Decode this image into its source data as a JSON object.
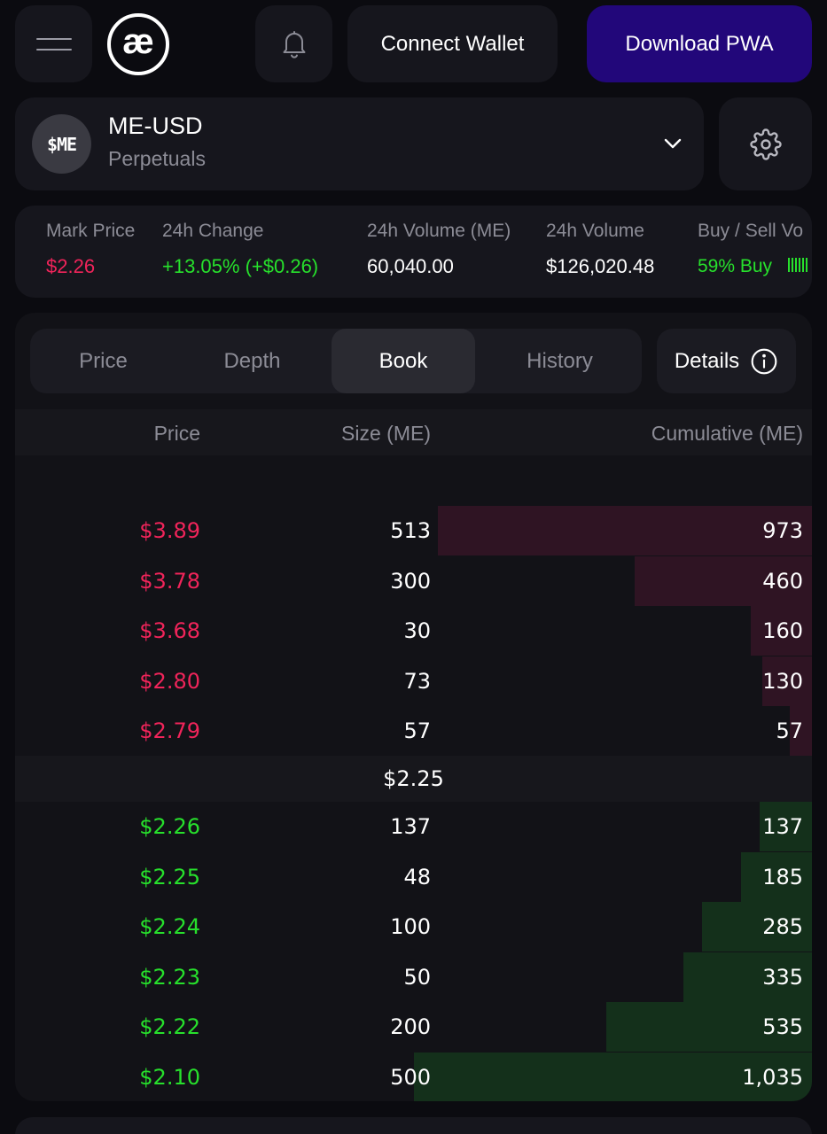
{
  "header": {
    "logo_text": "æ",
    "connect_wallet_label": "Connect Wallet",
    "download_label": "Download PWA"
  },
  "market": {
    "avatar_text": "$ME",
    "name": "ME-USD",
    "type": "Perpetuals"
  },
  "stats": {
    "mark_price_label": "Mark Price",
    "mark_price": "$2.26",
    "change_label": "24h Change",
    "change": "+13.05% (+$0.26)",
    "volume_me_label": "24h Volume (ME)",
    "volume_me": "60,040.00",
    "volume_label": "24h Volume",
    "volume": "$126,020.48",
    "buy_sell_label": "Buy / Sell Vo",
    "buy_sell": "59% Buy",
    "buy_fraction": 0.59
  },
  "tabs": [
    {
      "label": "Price",
      "active": false
    },
    {
      "label": "Depth",
      "active": false
    },
    {
      "label": "Book",
      "active": true
    },
    {
      "label": "History",
      "active": false
    }
  ],
  "details_label": "Details",
  "columns": {
    "price": "Price",
    "size": "Size (ME)",
    "cumulative": "Cumulative (ME)"
  },
  "asks": [
    {
      "price": "$3.89",
      "size": "513",
      "cumulative": "973",
      "depth": 973
    },
    {
      "price": "$3.78",
      "size": "300",
      "cumulative": "460",
      "depth": 460
    },
    {
      "price": "$3.68",
      "size": "30",
      "cumulative": "160",
      "depth": 160
    },
    {
      "price": "$2.80",
      "size": "73",
      "cumulative": "130",
      "depth": 130
    },
    {
      "price": "$2.79",
      "size": "57",
      "cumulative": "57",
      "depth": 57
    }
  ],
  "mid_price": "$2.25",
  "bids": [
    {
      "price": "$2.26",
      "size": "137",
      "cumulative": "137",
      "depth": 137
    },
    {
      "price": "$2.25",
      "size": "48",
      "cumulative": "185",
      "depth": 185
    },
    {
      "price": "$2.24",
      "size": "100",
      "cumulative": "285",
      "depth": 285
    },
    {
      "price": "$2.23",
      "size": "50",
      "cumulative": "335",
      "depth": 335
    },
    {
      "price": "$2.22",
      "size": "200",
      "cumulative": "535",
      "depth": 535
    },
    {
      "price": "$2.10",
      "size": "500",
      "cumulative": "1,035",
      "depth": 1035
    }
  ]
}
